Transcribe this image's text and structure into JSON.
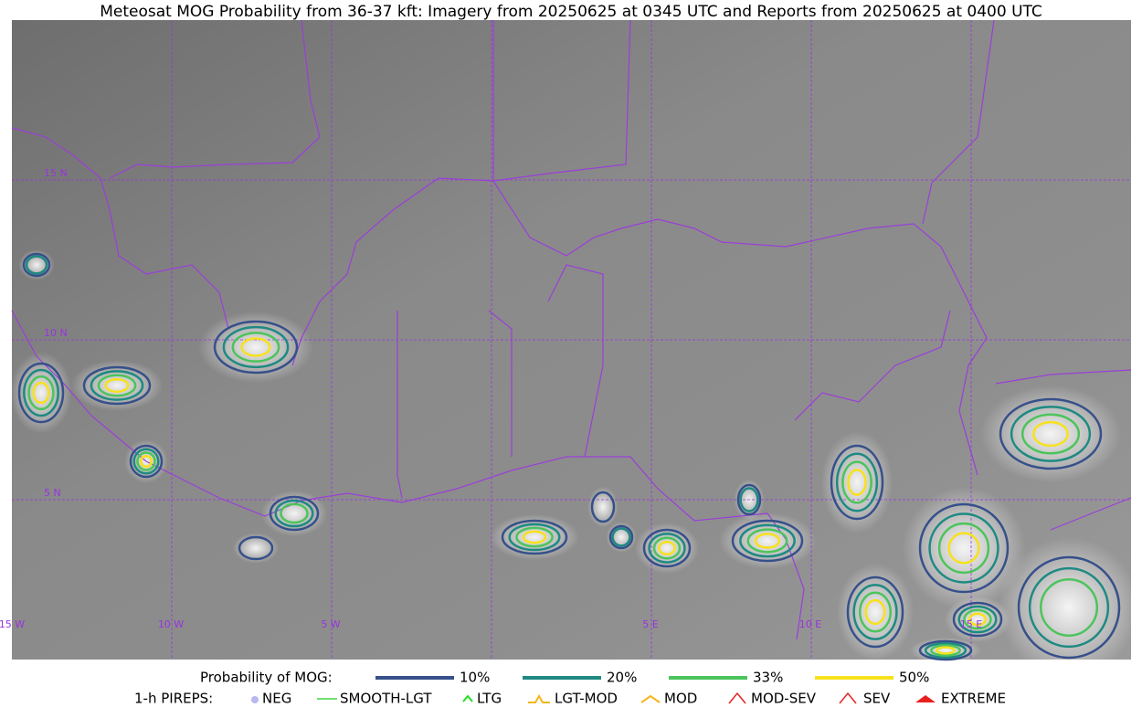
{
  "title": "Meteosat MOG Probability from 36-37 kft: Imagery from 20250625 at 0345 UTC and Reports from 20250625 at 0400 UTC",
  "map": {
    "lat_labels": [
      "15 N",
      "10 N",
      "5 N"
    ],
    "lon_labels": [
      "15 W",
      "10 W",
      "5 W",
      "5 E",
      "10 E",
      "15 E"
    ]
  },
  "legend": {
    "mog_label": "Probability of MOG:",
    "mog_items": [
      {
        "label": "10%",
        "color": "#36508a"
      },
      {
        "label": "20%",
        "color": "#1e8a82"
      },
      {
        "label": "33%",
        "color": "#4cc45c"
      },
      {
        "label": "50%",
        "color": "#f7e11c"
      }
    ],
    "pirep_label": "1-h PIREPS:",
    "pirep_items": [
      {
        "label": "NEG",
        "color": "#b8b8f0"
      },
      {
        "label": "SMOOTH-LGT",
        "color": "#44d444"
      },
      {
        "label": "LTG",
        "color": "#22dd22"
      },
      {
        "label": "LGT-MOD",
        "color": "#f2b51c"
      },
      {
        "label": "MOD",
        "color": "#f2b51c"
      },
      {
        "label": "MOD-SEV",
        "color": "#e82020"
      },
      {
        "label": "SEV",
        "color": "#e82020"
      },
      {
        "label": "EXTREME",
        "color": "#e82020"
      }
    ]
  }
}
